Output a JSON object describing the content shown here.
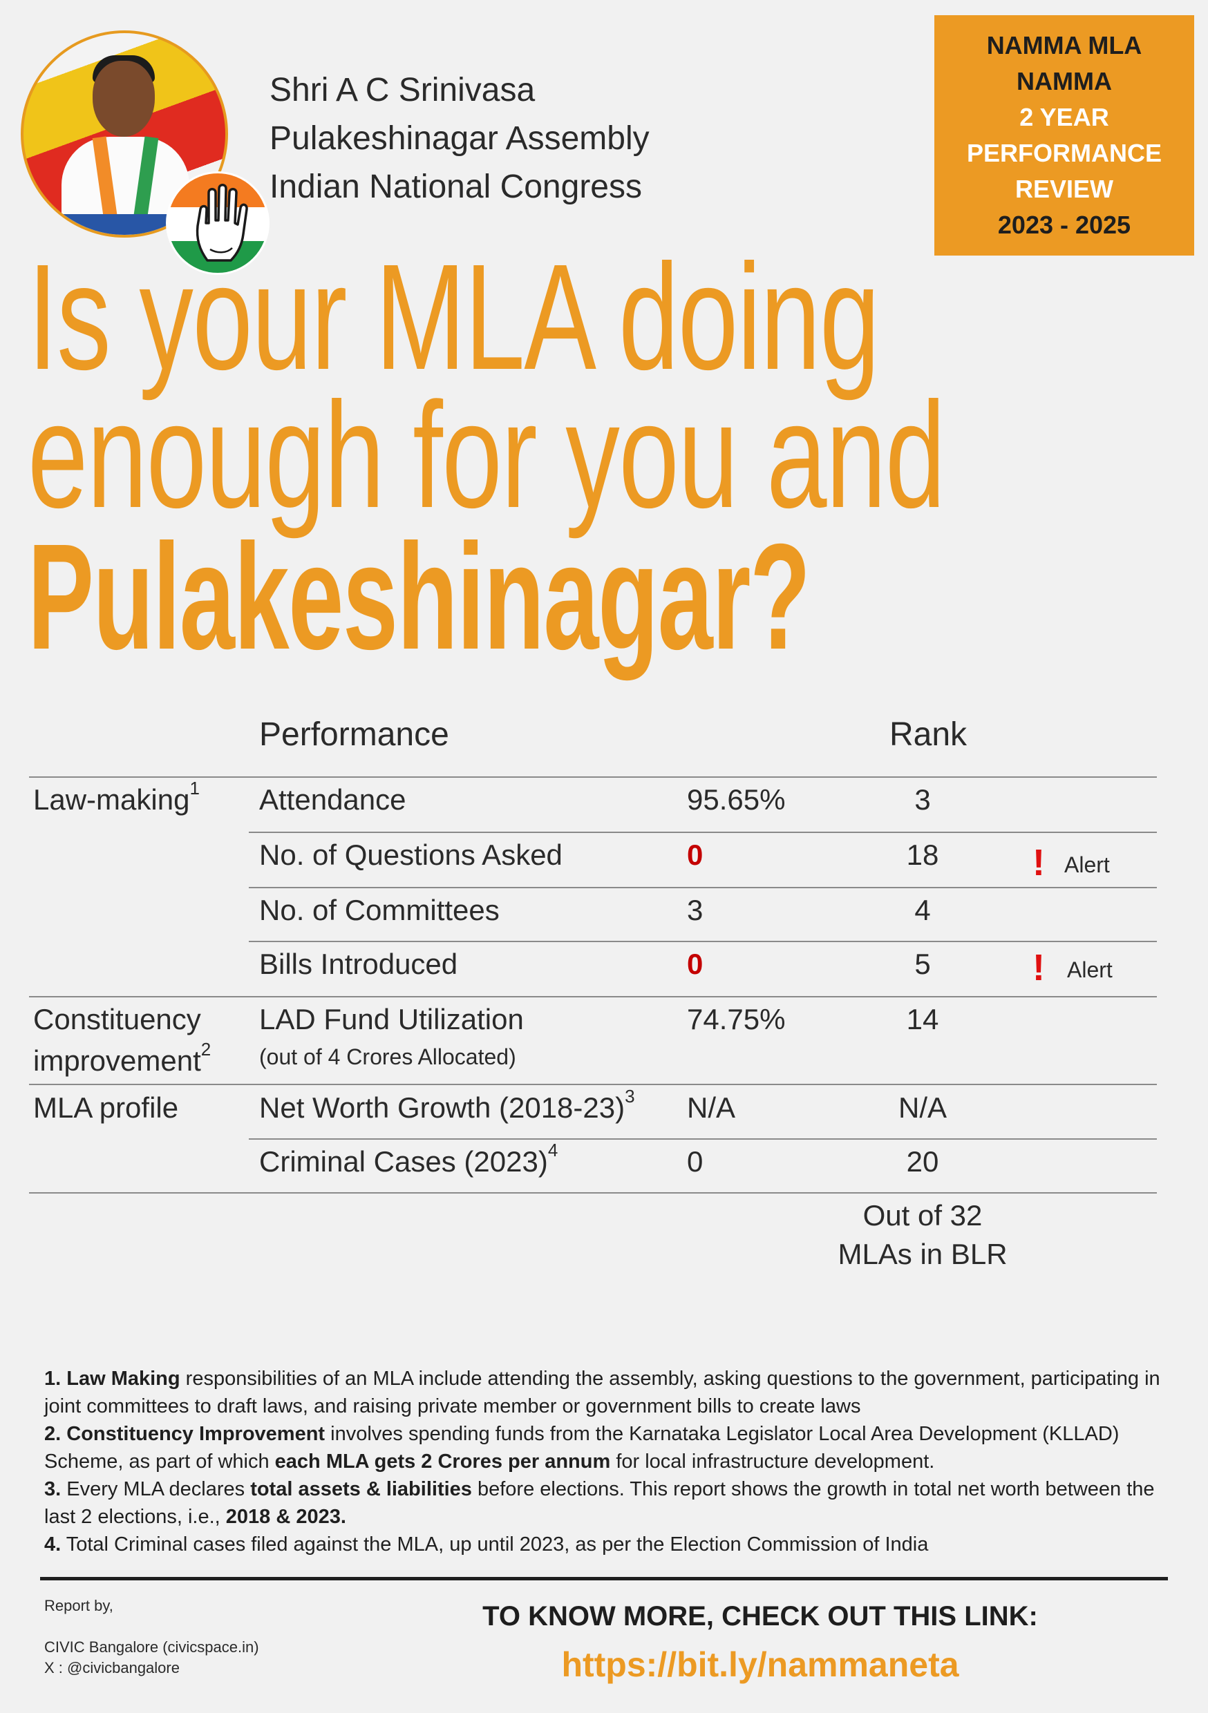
{
  "mla": {
    "name": "Shri A C Srinivasa",
    "constituency": "Pulakeshinagar Assembly",
    "party": "Indian National Congress"
  },
  "review_box": {
    "line1": "NAMMA MLA",
    "line2": "NAMMA",
    "line3": "2 YEAR",
    "line4": "PERFORMANCE",
    "line5": "REVIEW",
    "line6": "2023 - 2025"
  },
  "headline": {
    "line1": "Is your MLA doing",
    "line2": "enough for you and",
    "line3": "Pulakeshinagar?"
  },
  "table": {
    "header_performance": "Performance",
    "header_rank": "Rank",
    "groups": {
      "law_making": {
        "label": "Law-making",
        "sup": "1"
      },
      "constituency": {
        "label_line1": "Constituency",
        "label_line2": "improvement",
        "sup": "2"
      },
      "profile": {
        "label": "MLA profile"
      }
    },
    "rows": [
      {
        "metric": "Attendance",
        "value": "95.65%",
        "rank": "3",
        "alert": ""
      },
      {
        "metric": "No. of Questions Asked",
        "value": "0",
        "rank": "18",
        "alert": "Alert"
      },
      {
        "metric": "No. of Committees",
        "value": "3",
        "rank": "4",
        "alert": ""
      },
      {
        "metric": "Bills Introduced",
        "value": "0",
        "rank": "5",
        "alert": "Alert"
      },
      {
        "metric": "LAD Fund Utilization",
        "sub": "(out of 4 Crores Allocated)",
        "value": "74.75%",
        "rank": "14",
        "alert": ""
      },
      {
        "metric": "Net Worth Growth (2018-23)",
        "sup": "3",
        "value": "N/A",
        "rank": "N/A",
        "alert": ""
      },
      {
        "metric": "Criminal Cases (2023)",
        "sup": "4",
        "value": "0",
        "rank": "20",
        "alert": ""
      }
    ],
    "alert_icon": "exclamation-icon",
    "out_of_line1": "Out of 32",
    "out_of_line2": "MLAs in BLR"
  },
  "notes": {
    "n1_num": "1.",
    "n1_bold": "Law Making",
    "n1_text": " responsibilities of an MLA include attending the assembly, asking questions to the government, participating in joint committees to draft laws, and raising private member or government bills to create laws",
    "n2_num": "2.",
    "n2_bold": "Constituency Improvement",
    "n2_text_a": " involves spending funds from the Karnataka Legislator Local Area Development (KLLAD) Scheme, as part of which ",
    "n2_bold_b": "each MLA gets 2 Crores per annum",
    "n2_text_b": " for local infrastructure development.",
    "n3_num": "3.",
    "n3_text_a": " Every MLA declares ",
    "n3_bold": "total assets & liabilities",
    "n3_text_b": " before elections. This report shows the growth in total net worth between the last 2 elections, i.e., ",
    "n3_bold_b": "2018 & 2023.",
    "n4_num": "4.",
    "n4_text": " Total Criminal cases filed against the MLA, up until 2023, as per the Election Commission of India"
  },
  "footer": {
    "report_by": "Report by,",
    "org": "CIVIC Bangalore (civicspace.in)",
    "handle": "X : @civicbangalore",
    "cta": "TO KNOW MORE, CHECK OUT THIS LINK:",
    "link": "https://bit.ly/nammaneta"
  },
  "colors": {
    "accent": "#ec9a23",
    "alert": "#e01010",
    "zero_value": "#c40000"
  }
}
